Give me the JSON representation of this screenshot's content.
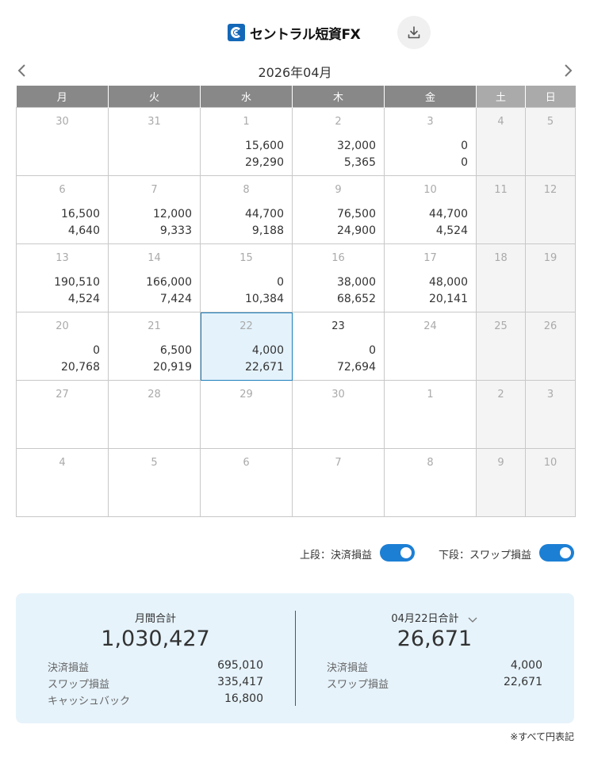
{
  "header": {
    "logo_text": "セントラル短資FX",
    "download_icon": "download-icon"
  },
  "month_nav": {
    "title": "2026年04月",
    "prev_icon": "chevron-left-icon",
    "next_icon": "chevron-right-icon"
  },
  "weekdays": [
    "月",
    "火",
    "水",
    "木",
    "金",
    "土",
    "日"
  ],
  "calendar": {
    "weeks": [
      [
        {
          "day": "30",
          "top": "",
          "bottom": ""
        },
        {
          "day": "31",
          "top": "",
          "bottom": ""
        },
        {
          "day": "1",
          "top": "15,600",
          "bottom": "29,290"
        },
        {
          "day": "2",
          "top": "32,000",
          "bottom": "5,365"
        },
        {
          "day": "3",
          "top": "0",
          "bottom": "0"
        },
        {
          "day": "4",
          "top": "",
          "bottom": ""
        },
        {
          "day": "5",
          "top": "",
          "bottom": ""
        }
      ],
      [
        {
          "day": "6",
          "top": "16,500",
          "bottom": "4,640"
        },
        {
          "day": "7",
          "top": "12,000",
          "bottom": "9,333"
        },
        {
          "day": "8",
          "top": "44,700",
          "bottom": "9,188"
        },
        {
          "day": "9",
          "top": "76,500",
          "bottom": "24,900"
        },
        {
          "day": "10",
          "top": "44,700",
          "bottom": "4,524"
        },
        {
          "day": "11",
          "top": "",
          "bottom": ""
        },
        {
          "day": "12",
          "top": "",
          "bottom": ""
        }
      ],
      [
        {
          "day": "13",
          "top": "190,510",
          "bottom": "4,524"
        },
        {
          "day": "14",
          "top": "166,000",
          "bottom": "7,424"
        },
        {
          "day": "15",
          "top": "0",
          "bottom": "10,384"
        },
        {
          "day": "16",
          "top": "38,000",
          "bottom": "68,652"
        },
        {
          "day": "17",
          "top": "48,000",
          "bottom": "20,141"
        },
        {
          "day": "18",
          "top": "",
          "bottom": ""
        },
        {
          "day": "19",
          "top": "",
          "bottom": ""
        }
      ],
      [
        {
          "day": "20",
          "top": "0",
          "bottom": "20,768"
        },
        {
          "day": "21",
          "top": "6,500",
          "bottom": "20,919"
        },
        {
          "day": "22",
          "top": "4,000",
          "bottom": "22,671"
        },
        {
          "day": "23",
          "top": "0",
          "bottom": "72,694"
        },
        {
          "day": "24",
          "top": "",
          "bottom": ""
        },
        {
          "day": "25",
          "top": "",
          "bottom": ""
        },
        {
          "day": "26",
          "top": "",
          "bottom": ""
        }
      ],
      [
        {
          "day": "27",
          "top": "",
          "bottom": ""
        },
        {
          "day": "28",
          "top": "",
          "bottom": ""
        },
        {
          "day": "29",
          "top": "",
          "bottom": ""
        },
        {
          "day": "30",
          "top": "",
          "bottom": ""
        },
        {
          "day": "1",
          "top": "",
          "bottom": ""
        },
        {
          "day": "2",
          "top": "",
          "bottom": ""
        },
        {
          "day": "3",
          "top": "",
          "bottom": ""
        }
      ],
      [
        {
          "day": "4",
          "top": "",
          "bottom": ""
        },
        {
          "day": "5",
          "top": "",
          "bottom": ""
        },
        {
          "day": "6",
          "top": "",
          "bottom": ""
        },
        {
          "day": "7",
          "top": "",
          "bottom": ""
        },
        {
          "day": "8",
          "top": "",
          "bottom": ""
        },
        {
          "day": "9",
          "top": "",
          "bottom": ""
        },
        {
          "day": "10",
          "top": "",
          "bottom": ""
        }
      ]
    ],
    "today": "22"
  },
  "toggles": {
    "upper_label": "上段：決済損益",
    "lower_label": "下段：スワップ損益",
    "upper_on": true,
    "lower_on": true
  },
  "summary": {
    "monthly": {
      "title": "月間合計",
      "total": "1,030,427",
      "rows": [
        {
          "label": "決済損益",
          "value": "695,010"
        },
        {
          "label": "スワップ損益",
          "value": "335,417"
        },
        {
          "label": "キャッシュバック",
          "value": "16,800"
        }
      ]
    },
    "daily": {
      "title": "04月22日合計",
      "dropdown_icon": "chevron-down-icon",
      "total": "26,671",
      "rows": [
        {
          "label": "決済損益",
          "value": "4,000"
        },
        {
          "label": "スワップ損益",
          "value": "22,671"
        }
      ]
    }
  },
  "footnote": "※すべて円表記",
  "colors": {
    "accent": "#1c7fd4",
    "today_bg": "#e4f2fb",
    "summary_bg": "#e6f3fb",
    "header_bg": "#888888"
  }
}
